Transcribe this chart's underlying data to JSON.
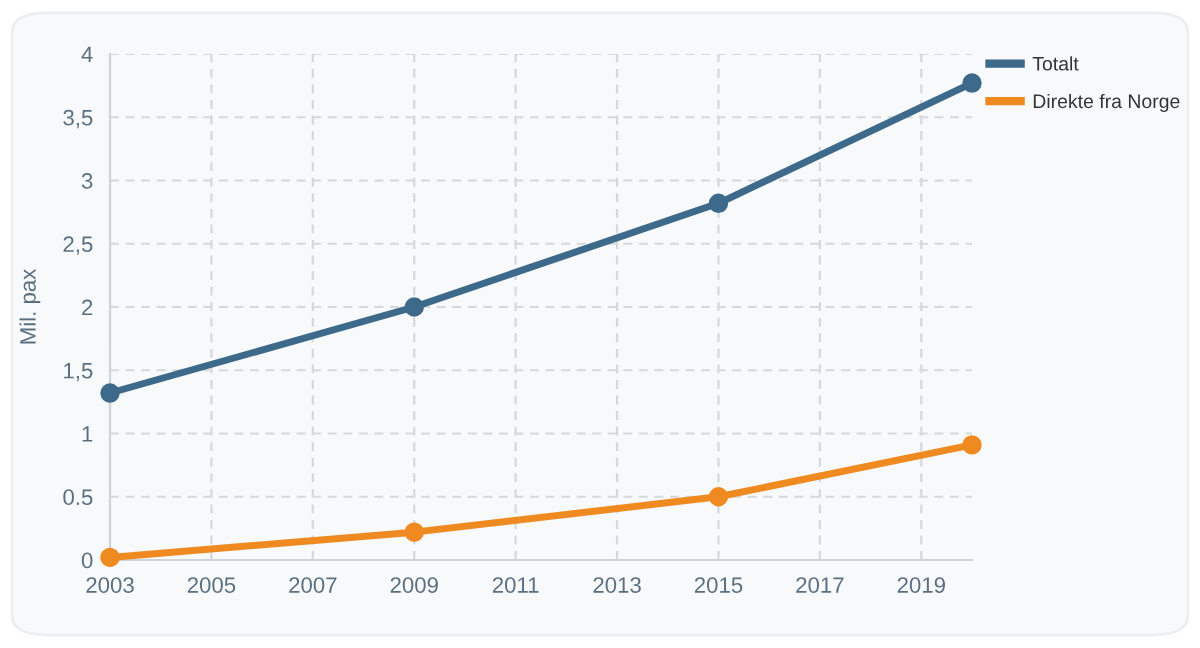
{
  "chart_data": {
    "type": "line",
    "ylabel": "Mil. pax",
    "x": [
      2003,
      2009,
      2015,
      2020
    ],
    "series": [
      {
        "name": "Totalt",
        "color": "#3d6a8a",
        "values": [
          1.32,
          2.0,
          2.82,
          3.77
        ]
      },
      {
        "name": "Direkte fra Norge",
        "color": "#ef8a21",
        "values": [
          0.02,
          0.22,
          0.5,
          0.91
        ]
      }
    ],
    "xlim": [
      2003,
      2020
    ],
    "xticks": [
      2003,
      2005,
      2007,
      2009,
      2011,
      2013,
      2015,
      2017,
      2019
    ],
    "ylim": [
      0,
      4
    ],
    "yticks": [
      0,
      {
        "value": 0.5,
        "label": "0.5"
      },
      1,
      {
        "value": 1.5,
        "label": "1,5"
      },
      2,
      {
        "value": 2.5,
        "label": "2,5"
      },
      3,
      {
        "value": 3.5,
        "label": "3,5"
      },
      4
    ],
    "grid": true,
    "legend": "top right",
    "marker": "circle",
    "line_style": "solid"
  }
}
